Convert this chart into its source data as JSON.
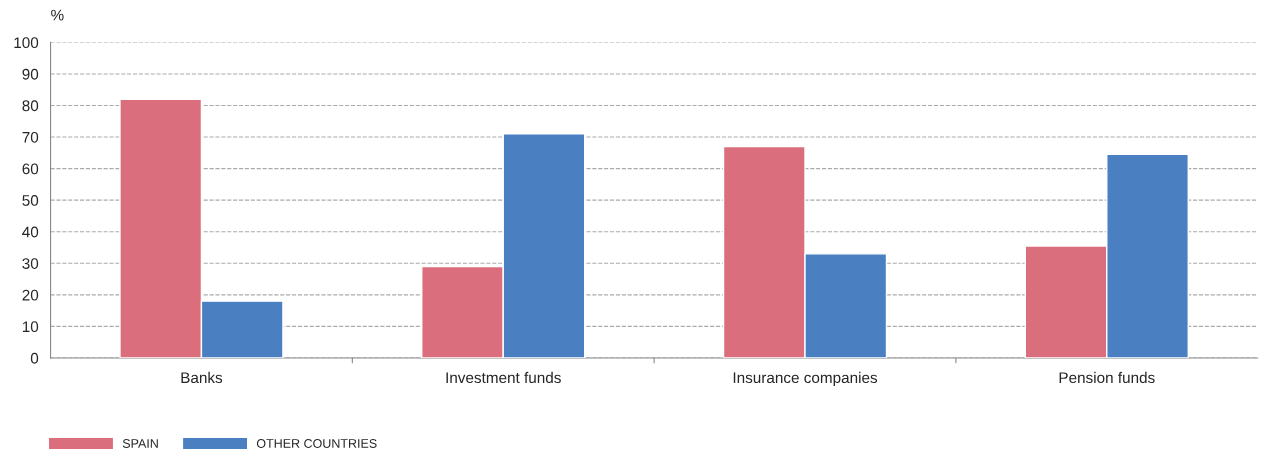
{
  "chart_data": {
    "type": "bar",
    "ylabel": "%",
    "categories": [
      "Banks",
      "Investment funds",
      "Insurance companies",
      "Pension funds"
    ],
    "series": [
      {
        "name": "SPAIN",
        "color": "#db6e7c",
        "values": [
          82,
          29,
          67,
          35.5
        ]
      },
      {
        "name": "OTHER COUNTRIES",
        "color": "#4a80c1",
        "values": [
          18,
          71,
          33,
          64.5
        ]
      }
    ],
    "ylim": [
      0,
      100
    ],
    "yticks": [
      0,
      10,
      20,
      30,
      40,
      50,
      60,
      70,
      80,
      90,
      100
    ],
    "grid": "y",
    "legend": "bottom left"
  }
}
